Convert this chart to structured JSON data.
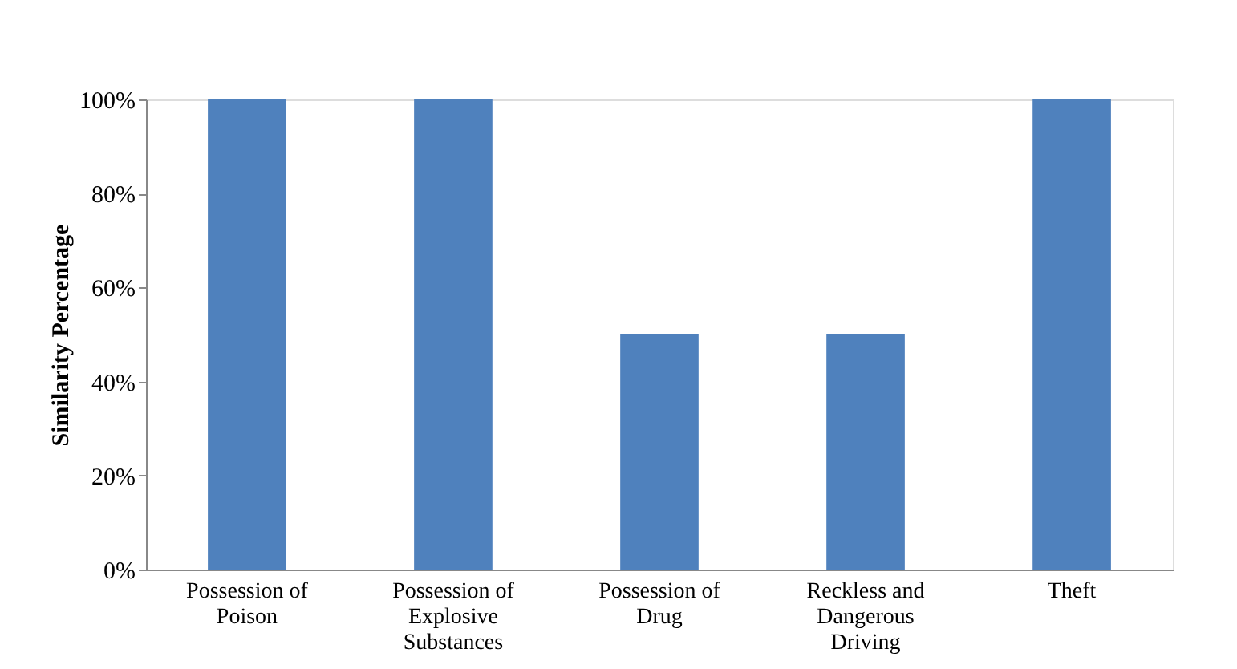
{
  "chart_data": {
    "type": "bar",
    "ylabel": "Similarity Percentage",
    "categories": [
      "Possession of\nPoison",
      "Possession of\nExplosive\nSubstances",
      "Possession of\nDrug",
      "Reckless and\nDangerous\nDriving",
      "Theft"
    ],
    "values": [
      100,
      100,
      50,
      50,
      100
    ],
    "color": "#4f81bd",
    "ylim": [
      0,
      100
    ],
    "yticks": [
      {
        "value": 0,
        "label": "0%"
      },
      {
        "value": 20,
        "label": "20%"
      },
      {
        "value": 40,
        "label": "40%"
      },
      {
        "value": 60,
        "label": "60%"
      },
      {
        "value": 80,
        "label": "80%"
      },
      {
        "value": 100,
        "label": "100%"
      }
    ],
    "grid": false
  }
}
